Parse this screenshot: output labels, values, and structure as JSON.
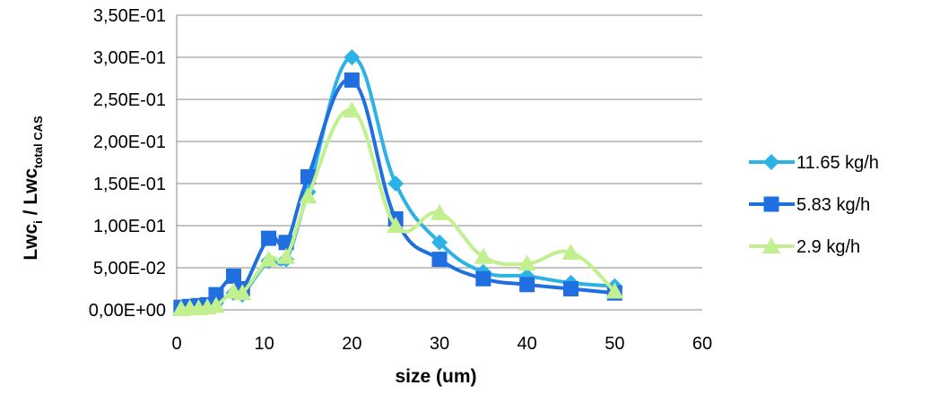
{
  "chart_data": {
    "type": "line",
    "xlabel": "size (um)",
    "ylabel_main": "Lwc",
    "ylabel_sub1": "i",
    "ylabel_sep": " / Lwc",
    "ylabel_sub2": "total CAS",
    "xlim": [
      0,
      60
    ],
    "ylim": [
      0,
      0.35
    ],
    "x_ticks": [
      0,
      10,
      20,
      30,
      40,
      50,
      60
    ],
    "x_tick_labels": [
      "0",
      "10",
      "20",
      "30",
      "40",
      "50",
      "60"
    ],
    "y_ticks": [
      0,
      0.05,
      0.1,
      0.15,
      0.2,
      0.25,
      0.3,
      0.35
    ],
    "y_tick_labels": [
      "0,00E+00",
      "5,00E-02",
      "1,00E-01",
      "1,50E-01",
      "2,00E-01",
      "2,50E-01",
      "3,00E-01",
      "3,50E-01"
    ],
    "grid": "horizontal",
    "legend_position": "right",
    "series": [
      {
        "name": "11.65 kg/h",
        "color": "#2DB2E6",
        "marker": "diamond",
        "x": [
          0.5,
          1.5,
          2.5,
          3.5,
          4.5,
          6.5,
          7.5,
          10.5,
          12.5,
          15,
          20,
          25,
          30,
          35,
          40,
          45,
          50
        ],
        "y": [
          0.002,
          0.003,
          0.004,
          0.005,
          0.008,
          0.02,
          0.018,
          0.058,
          0.06,
          0.14,
          0.3,
          0.15,
          0.08,
          0.045,
          0.04,
          0.032,
          0.028
        ]
      },
      {
        "name": "5.83 kg/h",
        "color": "#1F6FE0",
        "marker": "square",
        "x": [
          0.5,
          1.5,
          2.5,
          3.5,
          4.5,
          6.5,
          7.5,
          10.5,
          12.5,
          15,
          20,
          25,
          30,
          35,
          40,
          45,
          50
        ],
        "y": [
          0.003,
          0.004,
          0.005,
          0.006,
          0.018,
          0.04,
          0.025,
          0.085,
          0.08,
          0.158,
          0.273,
          0.108,
          0.06,
          0.037,
          0.03,
          0.025,
          0.02
        ]
      },
      {
        "name": "2.9 kg/h",
        "color": "#C2F08F",
        "marker": "triangle",
        "x": [
          0.5,
          1.5,
          2.5,
          3.5,
          4.5,
          6.5,
          7.5,
          10.5,
          12.5,
          15,
          20,
          25,
          30,
          35,
          40,
          45,
          50
        ],
        "y": [
          0.001,
          0.002,
          0.002,
          0.003,
          0.005,
          0.022,
          0.02,
          0.06,
          0.063,
          0.135,
          0.237,
          0.1,
          0.115,
          0.063,
          0.055,
          0.068,
          0.022
        ]
      }
    ]
  }
}
